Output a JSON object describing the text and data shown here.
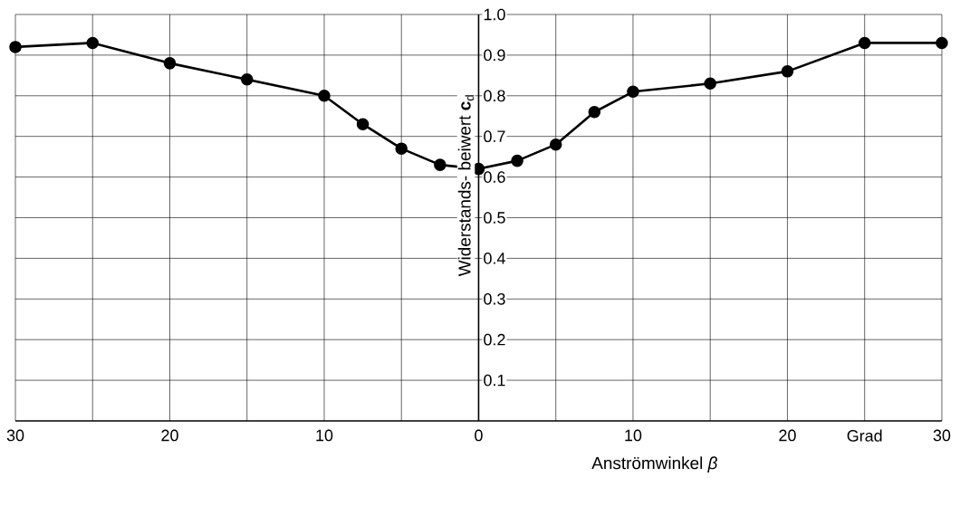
{
  "chart_data": {
    "type": "line",
    "xlabel": "Anströmwinkel *β*",
    "ylabel": "Widerstands- beiwert **c**$_{d}$",
    "x": [
      -30,
      -25,
      -20,
      -15,
      -10,
      -7.5,
      -5,
      -2.5,
      0,
      2.5,
      5,
      7.5,
      10,
      15,
      20,
      25,
      30
    ],
    "series": [
      {
        "color": "#000000",
        "values": [
          0.92,
          0.93,
          0.88,
          0.84,
          0.8,
          0.73,
          0.67,
          0.63,
          0.62,
          0.64,
          0.68,
          0.76,
          0.81,
          0.83,
          0.86,
          0.93,
          0.93
        ]
      }
    ],
    "xlim": [
      -30,
      30
    ],
    "ylim": [
      0,
      1
    ],
    "xticks": [
      {
        "value": -30,
        "label": "30"
      },
      {
        "value": -25,
        "label": null
      },
      {
        "value": -20,
        "label": "20"
      },
      {
        "value": -15,
        "label": null
      },
      {
        "value": -10,
        "label": "10"
      },
      {
        "value": -5,
        "label": null
      },
      0,
      {
        "value": 5,
        "label": null
      },
      10,
      {
        "value": 15,
        "label": null
      },
      20,
      {
        "value": 25,
        "label": "Grad"
      },
      30
    ],
    "yticks": [
      0.1,
      0.2,
      0.3,
      0.4,
      0.5,
      0.6,
      0.7,
      0.8,
      0.9,
      {
        "value": 1,
        "label": "1.0"
      }
    ],
    "grid": true,
    "marker": "circle",
    "line_style": "solid"
  }
}
